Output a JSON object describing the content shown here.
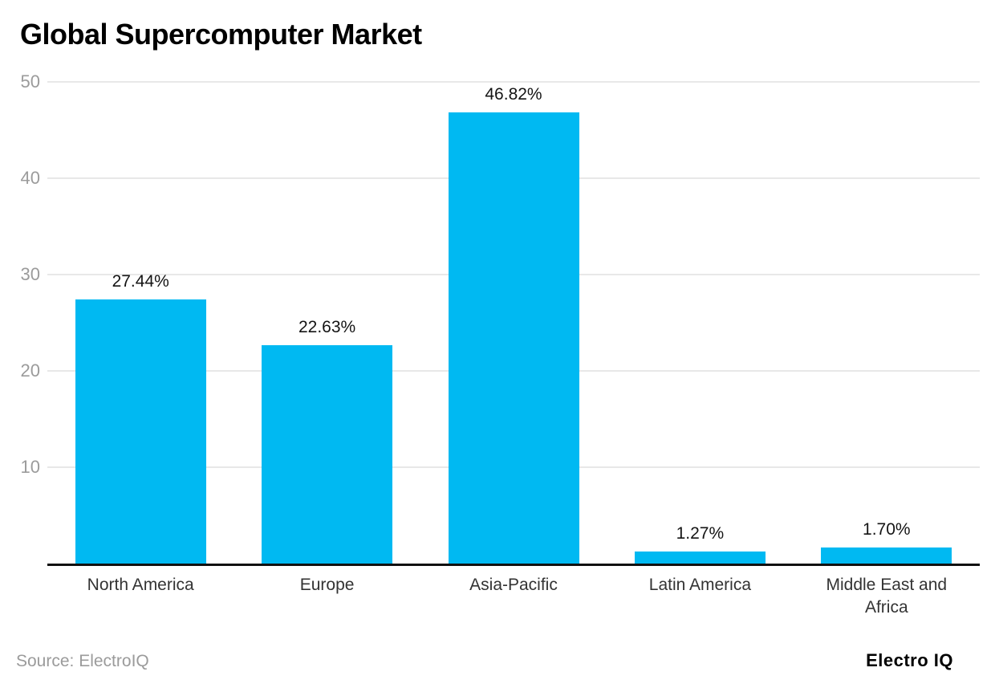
{
  "title": "Global Supercomputer Market",
  "footer": {
    "source": "Source: ElectroIQ",
    "brand": "Electro IQ"
  },
  "colors": {
    "bar": "#00b9f2",
    "gridline": "#e8e8e8",
    "axis_line": "#111111",
    "tick_label": "#9b9b9b",
    "category_label": "#333333",
    "value_label": "#141414",
    "background": "#ffffff"
  },
  "chart_data": {
    "type": "bar",
    "title": "Global Supercomputer Market",
    "categories": [
      "North America",
      "Europe",
      "Asia-Pacific",
      "Latin America",
      "Middle East and Africa"
    ],
    "values": [
      27.44,
      22.63,
      46.82,
      1.27,
      1.7
    ],
    "value_labels": [
      "27.44%",
      "22.63%",
      "46.82%",
      "1.27%",
      "1.70%"
    ],
    "xlabel": "",
    "ylabel": "",
    "yticks": [
      10,
      20,
      30,
      40,
      50
    ],
    "ylim": [
      0,
      50
    ],
    "grid": true,
    "legend": false,
    "source": "Source: ElectroIQ",
    "brand": "Electro IQ"
  }
}
